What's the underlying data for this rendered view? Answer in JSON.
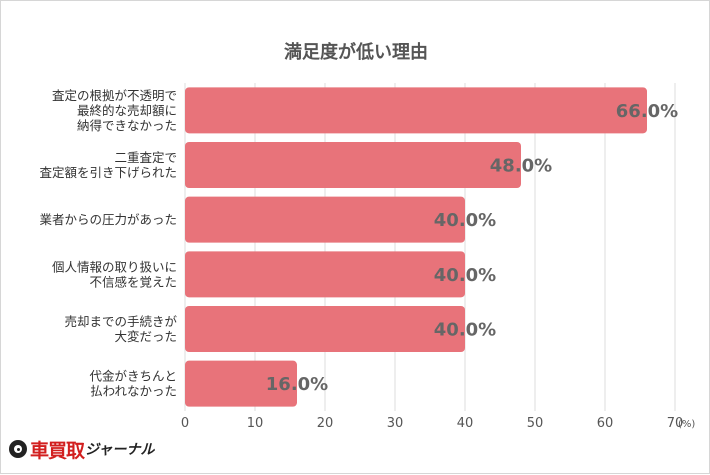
{
  "chart_data": {
    "type": "bar",
    "orientation": "horizontal",
    "title": "満足度が低い理由",
    "categories": [
      [
        "査定の根拠が不透明で",
        "最終的な売却額に",
        "納得できなかった"
      ],
      [
        "二重査定で",
        "査定額を引き下げられた"
      ],
      [
        "業者からの圧力があった"
      ],
      [
        "個人情報の取り扱いに",
        "不信感を覚えた"
      ],
      [
        "売却までの手続きが",
        "大変だった"
      ],
      [
        "代金がきちんと",
        "払われなかった"
      ]
    ],
    "values": [
      66.0,
      48.0,
      40.0,
      40.0,
      40.0,
      16.0
    ],
    "value_labels": [
      "66.0%",
      "48.0%",
      "40.0%",
      "40.0%",
      "40.0%",
      "16.0%"
    ],
    "xlim": [
      0,
      70
    ],
    "x_ticks": [
      0,
      10,
      20,
      30,
      40,
      50,
      60,
      70
    ],
    "x_unit": "(%)",
    "grid": true,
    "bar_color": "#e8737a",
    "grid_color": "#dddddd"
  },
  "logo": {
    "main": "車買取",
    "sub": "ジャーナル",
    "icon": "tire-icon"
  }
}
